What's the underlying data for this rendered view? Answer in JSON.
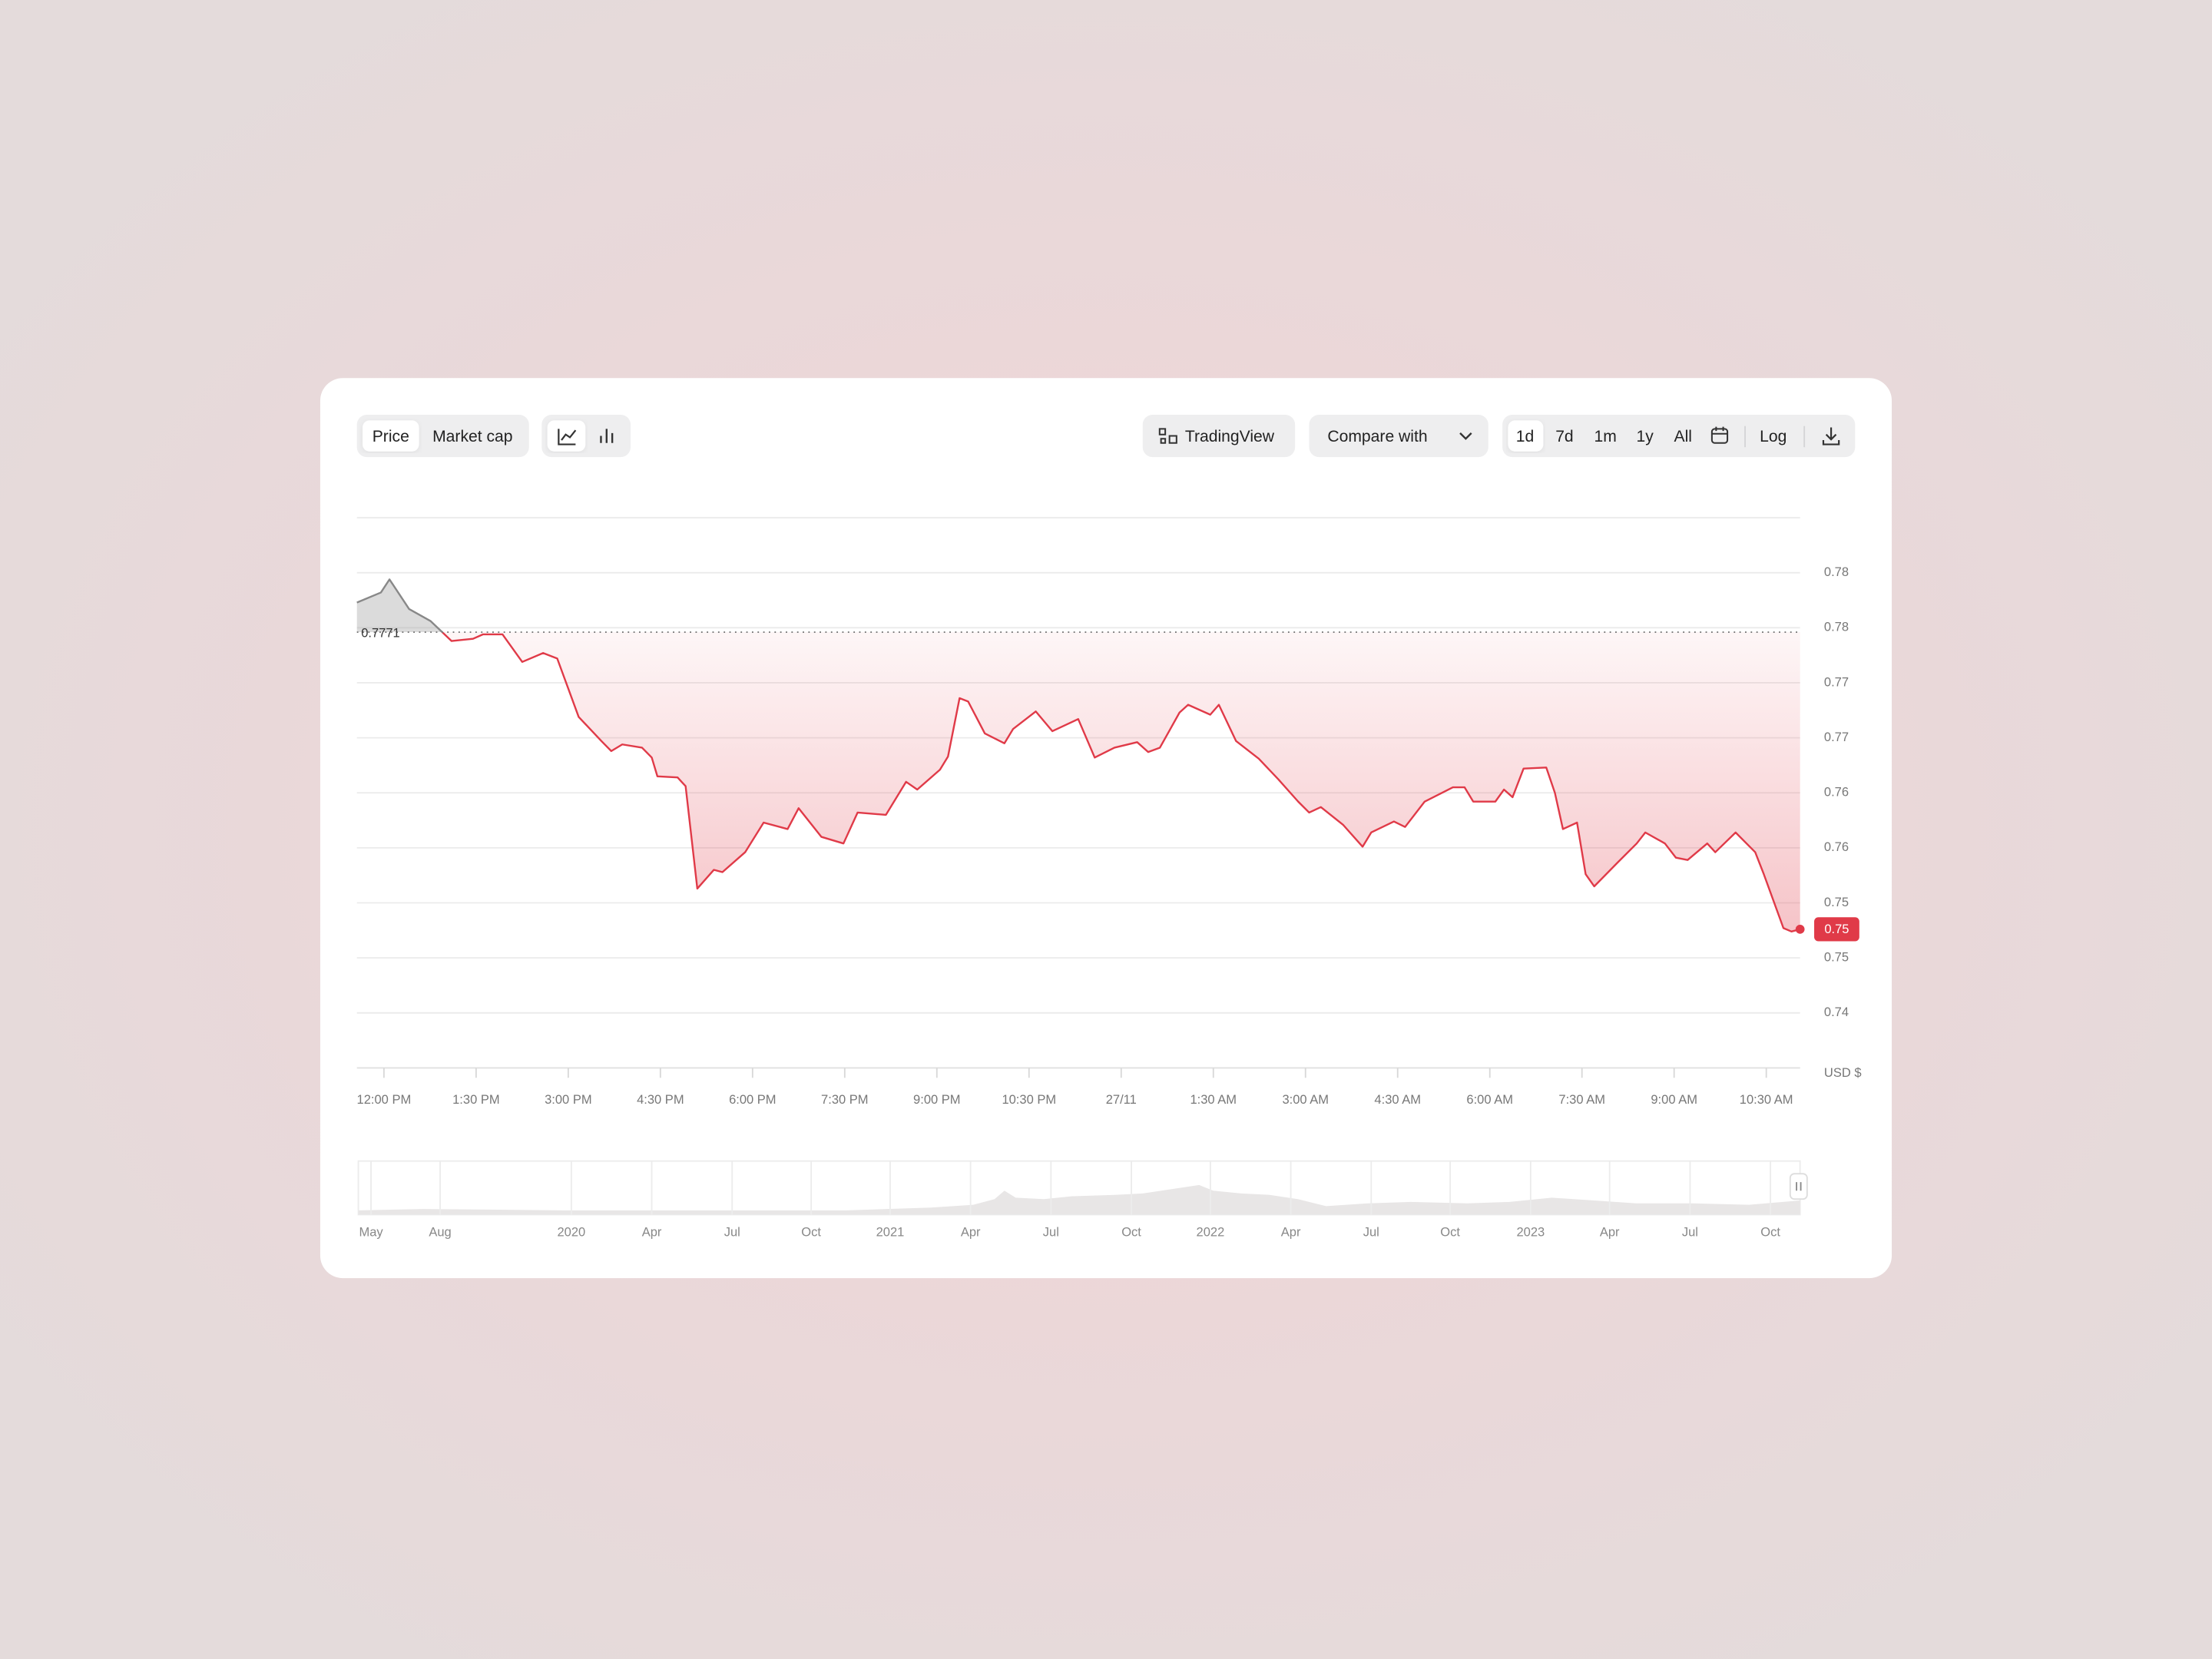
{
  "toolbar": {
    "tabs": [
      "Price",
      "Market cap"
    ],
    "tradingview": "TradingView",
    "compare": "Compare with",
    "ranges": [
      "1d",
      "7d",
      "1m",
      "1y",
      "All"
    ],
    "log": "Log"
  },
  "chart_data": {
    "type": "line",
    "x": [
      -0.44,
      -0.05,
      0.09,
      0.41,
      0.76,
      1.1,
      1.45,
      1.61,
      1.93,
      2.25,
      2.59,
      2.82,
      3.17,
      3.54,
      3.7,
      3.88,
      4.2,
      4.36,
      4.45,
      4.78,
      4.91,
      5.1,
      5.37,
      5.51,
      5.88,
      6.18,
      6.57,
      6.75,
      7.12,
      7.48,
      7.71,
      8.17,
      8.5,
      8.68,
      9.05,
      9.18,
      9.37,
      9.51,
      9.78,
      10.1,
      10.24,
      10.61,
      10.88,
      11.3,
      11.57,
      11.89,
      12.26,
      12.44,
      12.63,
      12.95,
      13.09,
      13.45,
      13.59,
      13.87,
      14.24,
      14.56,
      14.88,
      15.06,
      15.25,
      15.61,
      15.93,
      16.07,
      16.44,
      16.62,
      16.94,
      17.4,
      17.59,
      17.73,
      18.09,
      18.23,
      18.37,
      18.55,
      18.92,
      19.06,
      19.19,
      19.42,
      19.56,
      19.7,
      20.07,
      20.39,
      20.53,
      20.85,
      21.03,
      21.22,
      21.54,
      21.67,
      22.0,
      22.32,
      22.46,
      22.78,
      22.91,
      23.05
    ],
    "series": [
      {
        "color": "#e03a48",
        "values": [
          0.7798,
          0.7807,
          0.7819,
          0.7792,
          0.7781,
          0.7763,
          0.7765,
          0.7769,
          0.7769,
          0.7744,
          0.7752,
          0.7747,
          0.7694,
          0.7672,
          0.7663,
          0.7669,
          0.7666,
          0.7657,
          0.764,
          0.7639,
          0.7631,
          0.7538,
          0.7555,
          0.7553,
          0.7571,
          0.7598,
          0.7592,
          0.7611,
          0.7585,
          0.7579,
          0.7607,
          0.7605,
          0.7635,
          0.7628,
          0.7646,
          0.7658,
          0.7711,
          0.7708,
          0.7679,
          0.767,
          0.7683,
          0.7699,
          0.7681,
          0.7692,
          0.7657,
          0.7666,
          0.7671,
          0.7662,
          0.7666,
          0.7698,
          0.7705,
          0.7696,
          0.7705,
          0.7672,
          0.7656,
          0.7637,
          0.7617,
          0.7607,
          0.7612,
          0.7596,
          0.7576,
          0.7589,
          0.7599,
          0.7594,
          0.7617,
          0.763,
          0.763,
          0.7617,
          0.7617,
          0.7628,
          0.7621,
          0.7647,
          0.7648,
          0.7625,
          0.7592,
          0.7598,
          0.7551,
          0.754,
          0.7561,
          0.7579,
          0.7589,
          0.7579,
          0.7566,
          0.7564,
          0.7579,
          0.7571,
          0.7589,
          0.7571,
          0.7551,
          0.7502,
          0.7499,
          0.7501
        ]
      }
    ],
    "reference_value": 0.7771,
    "end_label": "0.75",
    "xlim": [
      -0.44,
      23.05
    ],
    "xticks": [
      {
        "value": 0,
        "label": "12:00 PM"
      },
      {
        "value": 1.5,
        "label": "1:30 PM"
      },
      {
        "value": 3,
        "label": "3:00 PM"
      },
      {
        "value": 4.5,
        "label": "4:30 PM"
      },
      {
        "value": 6,
        "label": "6:00 PM"
      },
      {
        "value": 7.5,
        "label": "7:30 PM"
      },
      {
        "value": 9,
        "label": "9:00 PM"
      },
      {
        "value": 10.5,
        "label": "10:30 PM"
      },
      {
        "value": 12,
        "label": "27/11"
      },
      {
        "value": 13.5,
        "label": "1:30 AM"
      },
      {
        "value": 15,
        "label": "3:00 AM"
      },
      {
        "value": 16.5,
        "label": "4:30 AM"
      },
      {
        "value": 18,
        "label": "6:00 AM"
      },
      {
        "value": 19.5,
        "label": "7:30 AM"
      },
      {
        "value": 21,
        "label": "9:00 AM"
      },
      {
        "value": 22.5,
        "label": "10:30 AM"
      }
    ],
    "ylim": [
      0.7375,
      0.7875
    ],
    "yticks": [
      {
        "value": 0.7825,
        "label": "0.78"
      },
      {
        "value": 0.7775,
        "label": "0.78"
      },
      {
        "value": 0.7725,
        "label": "0.77"
      },
      {
        "value": 0.7675,
        "label": "0.77"
      },
      {
        "value": 0.7625,
        "label": "0.76"
      },
      {
        "value": 0.7575,
        "label": "0.76"
      },
      {
        "value": 0.7525,
        "label": "0.75"
      },
      {
        "value": 0.7475,
        "label": "0.75"
      },
      {
        "value": 0.7425,
        "label": "0.74"
      }
    ],
    "y_unit": "USD $",
    "grid": true
  },
  "navigator": {
    "labels": [
      "May",
      "Aug",
      "2020",
      "Apr",
      "Jul",
      "Oct",
      "2021",
      "Apr",
      "Jul",
      "Oct",
      "2022",
      "Apr",
      "Jul",
      "Oct",
      "2023",
      "Apr",
      "Jul",
      "Oct"
    ]
  }
}
